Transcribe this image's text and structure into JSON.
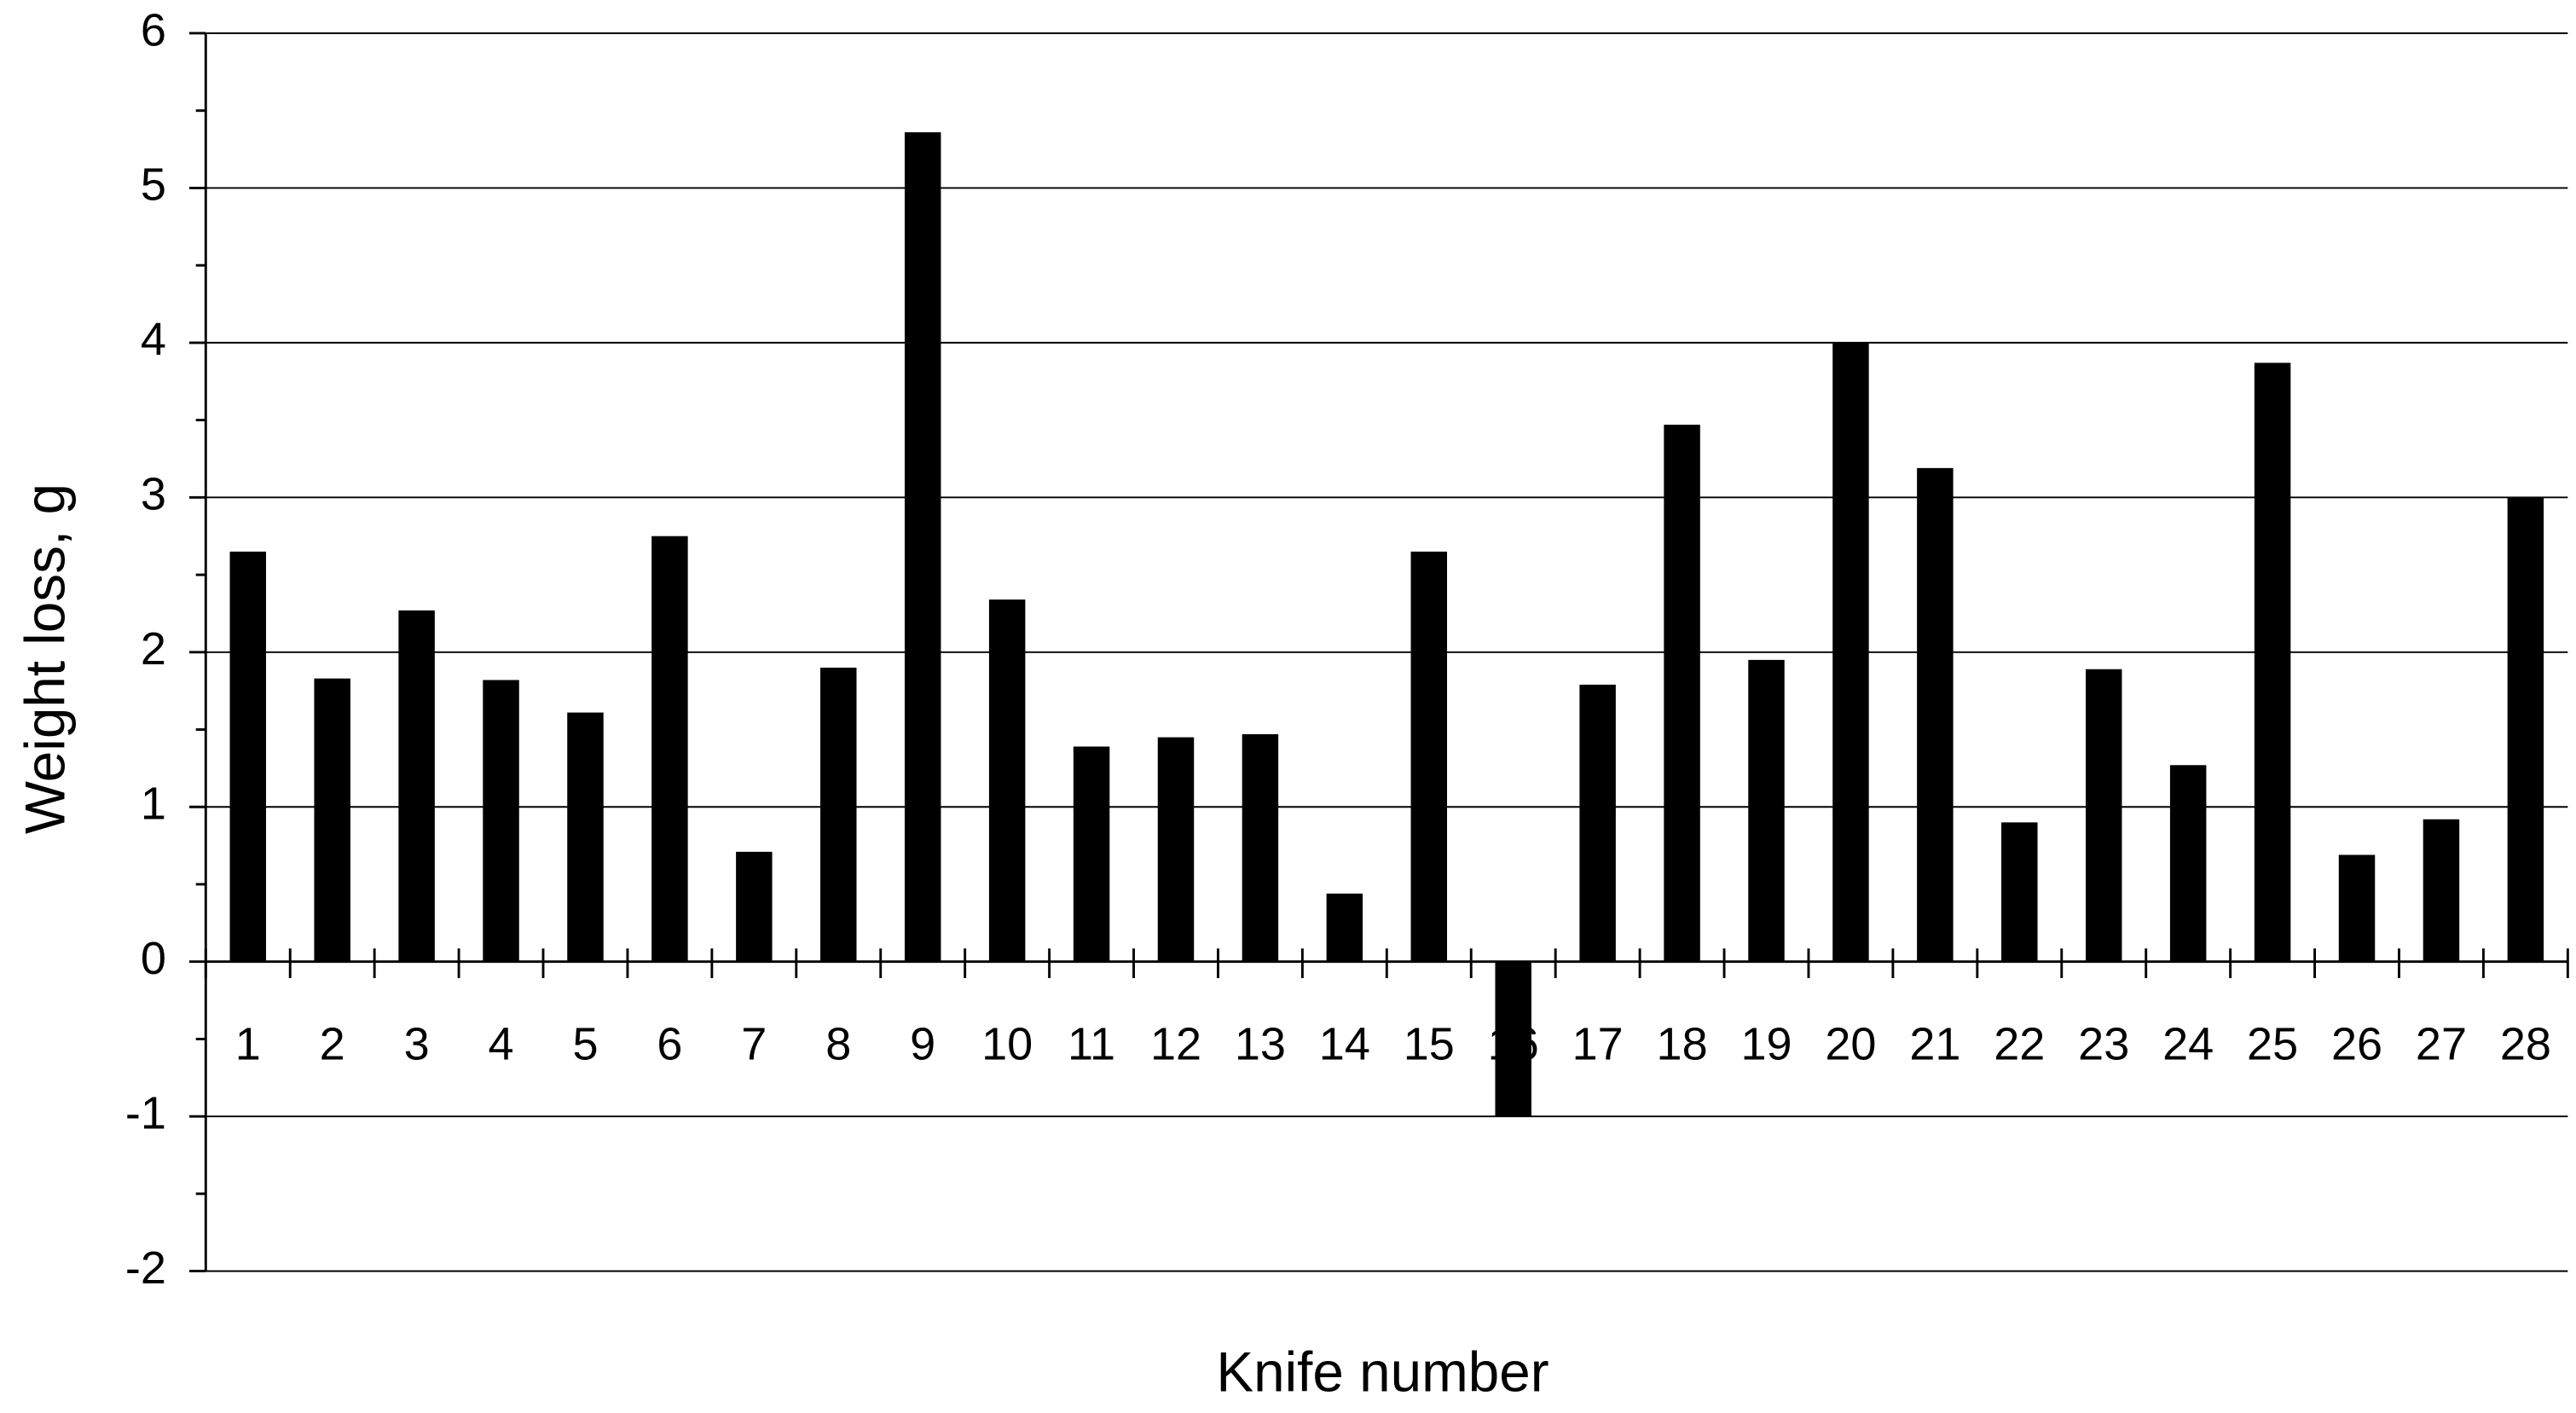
{
  "chart_data": {
    "type": "bar",
    "x_label": "Knife number",
    "y_label": "Weight loss, g",
    "categories": [
      "1",
      "2",
      "3",
      "4",
      "5",
      "6",
      "7",
      "8",
      "9",
      "10",
      "11",
      "12",
      "13",
      "14",
      "15",
      "16",
      "17",
      "18",
      "19",
      "20",
      "21",
      "22",
      "23",
      "24",
      "25",
      "26",
      "27",
      "28"
    ],
    "values": [
      2.65,
      1.83,
      2.27,
      1.82,
      1.61,
      2.75,
      0.71,
      1.9,
      5.36,
      2.34,
      1.39,
      1.45,
      1.47,
      0.44,
      2.65,
      -1.0,
      1.79,
      3.47,
      1.95,
      4.0,
      3.19,
      0.9,
      1.89,
      1.27,
      3.87,
      0.69,
      0.92,
      3.0
    ],
    "color": "#000000",
    "ylim": [
      -2,
      6
    ],
    "yticks": [
      -2,
      -1,
      0,
      1,
      2,
      3,
      4,
      5,
      6
    ],
    "grid": true
  }
}
